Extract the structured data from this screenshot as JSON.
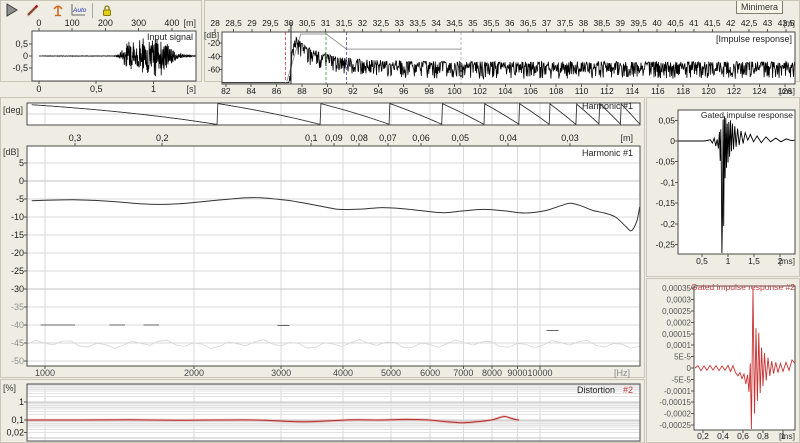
{
  "window": {
    "tooltip": "Minimera"
  },
  "toolbar": {
    "icons": [
      {
        "name": "play-icon"
      },
      {
        "name": "pencil-icon"
      },
      {
        "name": "mic-icon"
      },
      {
        "name": "auto-scale-icon",
        "label": "Auto"
      },
      {
        "name": "lock-icon"
      }
    ]
  },
  "chart_data": [
    {
      "id": "input_signal",
      "type": "waveform",
      "title": "Input signal",
      "color": "#000000",
      "sound_speed": 345,
      "top_axis": {
        "unit": "[m]",
        "values": [
          0,
          100,
          200,
          300,
          400
        ],
        "labels": [
          "0",
          "100",
          "200",
          "300",
          "400"
        ]
      },
      "x_axis": {
        "unit": "[s]",
        "values": [
          0,
          0.5,
          1
        ],
        "labels": [
          "0",
          "0,5",
          "1"
        ],
        "range": [
          -0.06,
          1.37
        ]
      },
      "y_axis": {
        "values": [
          0.5,
          0,
          -0.5
        ],
        "labels": [
          "0,5",
          "0",
          "-0,5"
        ],
        "range": [
          -1.05,
          1.05
        ]
      },
      "envelope": [
        [
          0,
          0
        ],
        [
          0.05,
          0.01
        ],
        [
          0.66,
          0.01
        ],
        [
          0.7,
          0.12
        ],
        [
          0.74,
          0.45
        ],
        [
          0.8,
          0.72
        ],
        [
          0.86,
          0.68
        ],
        [
          0.92,
          0.8
        ],
        [
          0.98,
          0.95
        ],
        [
          1.03,
          0.92
        ],
        [
          1.08,
          0.85
        ],
        [
          1.12,
          0.6
        ],
        [
          1.16,
          0.35
        ],
        [
          1.2,
          0.2
        ],
        [
          1.26,
          0.1
        ],
        [
          1.32,
          0.04
        ],
        [
          1.36,
          0.02
        ]
      ]
    },
    {
      "id": "impulse_response",
      "type": "impulse",
      "title": "[Impulse response]",
      "ylabel": "[dB]",
      "color": "#000000",
      "y_axis": {
        "values": [
          -20,
          -40,
          -60
        ],
        "labels": [
          "-20",
          "-40",
          "-60"
        ],
        "range": [
          -82,
          -3
        ]
      },
      "x_axis": {
        "unit": "[ms]",
        "start": 82,
        "step": 2,
        "count": 23,
        "labels": [
          "82",
          "84",
          "86",
          "88",
          "90",
          "92",
          "94",
          "96",
          "98",
          "100",
          "102",
          "104",
          "106",
          "108",
          "110",
          "112",
          "114",
          "116",
          "118",
          "120",
          "122",
          "124",
          "126"
        ],
        "range": [
          81.7,
          126.8
        ]
      },
      "top_axis": {
        "unit": "[m]",
        "start": 28,
        "step": 0.5,
        "count": 32,
        "labels": [
          "28",
          "28,5",
          "29",
          "29,5",
          "30",
          "30,5",
          "31",
          "31,5",
          "32",
          "32,5",
          "33",
          "33,5",
          "34",
          "34,5",
          "35",
          "35,5",
          "36",
          "36,5",
          "37",
          "37,5",
          "38",
          "38,5",
          "39",
          "39,5",
          "40",
          "40,5",
          "41",
          "41,5",
          "42",
          "42,5",
          "43",
          "43,5"
        ]
      },
      "envelope": [
        [
          81.7,
          -80
        ],
        [
          87.0,
          -80
        ],
        [
          87.1,
          -55
        ],
        [
          87.25,
          -30
        ],
        [
          87.5,
          -14
        ],
        [
          87.8,
          -20
        ],
        [
          88.2,
          -27
        ],
        [
          88.8,
          -33
        ],
        [
          89.5,
          -38
        ],
        [
          90.4,
          -43
        ],
        [
          91.4,
          -46
        ],
        [
          93,
          -49
        ],
        [
          96,
          -51
        ],
        [
          100,
          -52
        ],
        [
          110,
          -52
        ],
        [
          120,
          -52
        ],
        [
          126.8,
          -52
        ]
      ],
      "cursor_t": 87.15,
      "markers": [
        {
          "t": 86.7,
          "color": "#d96060",
          "dash": "3,2"
        },
        {
          "t": 89.9,
          "color": "#5aa85a",
          "dash": "3,2"
        },
        {
          "t": 91.5,
          "color": "#6a6ac8",
          "dash": "3,2"
        },
        {
          "t": 100.5,
          "color": "#b4b4b4",
          "dash": "3,2"
        }
      ],
      "window_line": [
        [
          86.8,
          -78
        ],
        [
          87.9,
          -6
        ],
        [
          89.9,
          -6
        ],
        [
          91.5,
          -29
        ],
        [
          100.5,
          -29
        ]
      ]
    },
    {
      "id": "phase",
      "type": "phase",
      "title": "Harmonic #1",
      "ylabel": "[deg]",
      "color": "#333333",
      "f_range": [
        940,
        15900
      ],
      "first_wrap_f": 2230,
      "delta_f": 1370,
      "y_range": [
        -180,
        180
      ]
    },
    {
      "id": "magnitude",
      "type": "line-log",
      "title": "Harmonic #1",
      "ylabel": "[dB]",
      "color": "#333333",
      "sound_speed": 345,
      "top_axis": {
        "unit": "[m]",
        "values": [
          0.3,
          0.2,
          0.1,
          0.09,
          0.08,
          0.07,
          0.06,
          0.05,
          0.04,
          0.03
        ],
        "labels": [
          "0,3",
          "0,2",
          "0,1",
          "0,09",
          "0,08",
          "0,07",
          "0,06",
          "0,05",
          "0,04",
          "0,03"
        ]
      },
      "x_axis": {
        "unit": "[Hz]",
        "values": [
          1000,
          2000,
          3000,
          4000,
          5000,
          6000,
          7000,
          8000,
          9000,
          10000
        ],
        "labels": [
          "1000",
          "2000",
          "3000",
          "4000",
          "5000",
          "6000",
          "7000",
          "8000",
          "9000",
          "10000"
        ]
      },
      "y_axis": {
        "values": [
          5,
          0,
          -5,
          -10,
          -15,
          -20,
          -25,
          -30,
          -35,
          -40,
          -45,
          -50
        ],
        "labels": [
          "5",
          "0",
          "-5",
          "-10",
          "-15",
          "-20",
          "-25",
          "-30",
          "-35",
          "-40",
          "-45",
          "-50"
        ]
      },
      "points": [
        [
          940,
          -5.5
        ],
        [
          1030,
          -5.3
        ],
        [
          1140,
          -5.2
        ],
        [
          1260,
          -5.4
        ],
        [
          1400,
          -5.8
        ],
        [
          1550,
          -6.3
        ],
        [
          1700,
          -6.5
        ],
        [
          1870,
          -6.3
        ],
        [
          2060,
          -5.8
        ],
        [
          2280,
          -5.2
        ],
        [
          2520,
          -4.7
        ],
        [
          2660,
          -4.6
        ],
        [
          2820,
          -4.8
        ],
        [
          3100,
          -5.4
        ],
        [
          3420,
          -6.4
        ],
        [
          3770,
          -7.5
        ],
        [
          3950,
          -7.9
        ],
        [
          4350,
          -7.8
        ],
        [
          4800,
          -7.4
        ],
        [
          5300,
          -7.7
        ],
        [
          5800,
          -8.3
        ],
        [
          6400,
          -8.8
        ],
        [
          7000,
          -8.3
        ],
        [
          7700,
          -7.9
        ],
        [
          8500,
          -8.3
        ],
        [
          9300,
          -8.9
        ],
        [
          10200,
          -8.3
        ],
        [
          11000,
          -6.9
        ],
        [
          11500,
          -6.2
        ],
        [
          12100,
          -6.9
        ],
        [
          12800,
          -8.2
        ],
        [
          13500,
          -8.9
        ],
        [
          14200,
          -10.0
        ],
        [
          14900,
          -12.6
        ],
        [
          15300,
          -13.8
        ],
        [
          15700,
          -11.0
        ],
        [
          15900,
          -7.2
        ]
      ],
      "floor_segments": [
        [
          980,
          1150,
          -40
        ],
        [
          1350,
          1450,
          -40
        ],
        [
          1580,
          1700,
          -40
        ],
        [
          2950,
          3120,
          -40.2
        ],
        [
          10300,
          10900,
          -41.5
        ]
      ],
      "noise_floor_db": -45.3
    },
    {
      "id": "distortion",
      "type": "line-log",
      "label_main": "Distortion",
      "label_num": "#2",
      "ylabel": "[%]",
      "color": "#b03030",
      "y_axis": {
        "values": [
          1,
          0.1,
          0.02
        ],
        "labels": [
          "1",
          "0,1",
          "0,02"
        ]
      },
      "points": [
        [
          920,
          0.1
        ],
        [
          1177,
          0.1
        ],
        [
          1484,
          0.102
        ],
        [
          1830,
          0.097
        ],
        [
          2204,
          0.1
        ],
        [
          2659,
          0.1
        ],
        [
          3054,
          0.086
        ],
        [
          3350,
          0.079
        ],
        [
          3762,
          0.09
        ],
        [
          4224,
          0.103
        ],
        [
          4743,
          0.1
        ],
        [
          5326,
          0.108
        ],
        [
          5856,
          0.103
        ],
        [
          6439,
          0.082
        ],
        [
          6960,
          0.071
        ],
        [
          7490,
          0.082
        ],
        [
          7975,
          0.1
        ],
        [
          8441,
          0.155
        ],
        [
          8698,
          0.13
        ],
        [
          8922,
          0.106
        ],
        [
          9073,
          0.1
        ]
      ]
    },
    {
      "id": "gated_ir",
      "type": "line",
      "title": "Gated impulse response",
      "color": "#000000",
      "y_axis": {
        "values": [
          0.05,
          0,
          -0.05,
          -0.1,
          -0.15,
          -0.2,
          -0.25
        ],
        "labels": [
          "0,05",
          "0",
          "-0,05",
          "-0,1",
          "-0,15",
          "-0,2",
          "-0,25"
        ]
      },
      "x_axis": {
        "unit": "[ms]",
        "values": [
          0.5,
          1,
          1.5,
          2
        ],
        "labels": [
          "0,5",
          "1",
          "1,5",
          "2"
        ]
      },
      "points": [
        [
          0.04,
          0
        ],
        [
          0.55,
          0
        ],
        [
          0.66,
          0.003
        ],
        [
          0.7,
          -0.005
        ],
        [
          0.735,
          0.007
        ],
        [
          0.765,
          -0.012
        ],
        [
          0.79,
          0.004
        ],
        [
          0.815,
          -0.018
        ],
        [
          0.835,
          0.022
        ],
        [
          0.85,
          -0.048
        ],
        [
          0.862,
          0.028
        ],
        [
          0.872,
          -0.06
        ],
        [
          0.882,
          -0.272
        ],
        [
          0.895,
          -0.18
        ],
        [
          0.905,
          0.052
        ],
        [
          0.917,
          -0.205
        ],
        [
          0.93,
          0.06
        ],
        [
          0.945,
          -0.09
        ],
        [
          0.958,
          0.055
        ],
        [
          0.972,
          -0.065
        ],
        [
          0.985,
          0.042
        ],
        [
          1.0,
          -0.052
        ],
        [
          1.015,
          0.046
        ],
        [
          1.03,
          -0.038
        ],
        [
          1.048,
          0.05
        ],
        [
          1.065,
          -0.025
        ],
        [
          1.085,
          0.042
        ],
        [
          1.105,
          -0.02
        ],
        [
          1.13,
          0.036
        ],
        [
          1.155,
          -0.014
        ],
        [
          1.185,
          0.03
        ],
        [
          1.215,
          -0.01
        ],
        [
          1.25,
          0.024
        ],
        [
          1.29,
          -0.006
        ],
        [
          1.33,
          0.02
        ],
        [
          1.38,
          0.002
        ],
        [
          1.43,
          0.016
        ],
        [
          1.49,
          -0.002
        ],
        [
          1.56,
          0.012
        ],
        [
          1.64,
          -0.004
        ],
        [
          1.73,
          0.01
        ],
        [
          1.82,
          -0.002
        ],
        [
          1.92,
          0.007
        ],
        [
          2.02,
          -0.002
        ],
        [
          2.12,
          0.005
        ],
        [
          2.22,
          0.001
        ],
        [
          2.29,
          0.002
        ]
      ]
    },
    {
      "id": "gated_ir2",
      "type": "line",
      "title": "Gated impulse response #2",
      "color": "#c83232",
      "y_axis": {
        "values": [
          0.00035,
          0.0003,
          0.00025,
          0.0002,
          0.00015,
          0.0001,
          5e-05,
          0,
          -5e-05,
          -0.0001,
          -0.00015,
          -0.0002,
          -0.00025
        ],
        "labels": [
          "0,00035",
          "0,0003",
          "0,00025",
          "0,0002",
          "0,00015",
          "0,0001",
          "5E-5",
          "0",
          "-5E-5",
          "-0,0001",
          "-0,00015",
          "-0,0002",
          "-0,00025"
        ]
      },
      "x_axis": {
        "unit": "[ms]",
        "values": [
          0.2,
          0.4,
          0.6,
          0.8,
          1
        ],
        "labels": [
          "0,2",
          "0,4",
          "0,6",
          "0,8",
          "1"
        ]
      },
      "points": [
        [
          0.12,
          0
        ],
        [
          0.15,
          1e-05
        ],
        [
          0.18,
          -1.2e-05
        ],
        [
          0.21,
          9e-06
        ],
        [
          0.24,
          -1e-05
        ],
        [
          0.27,
          1.2e-05
        ],
        [
          0.3,
          -9e-06
        ],
        [
          0.33,
          1e-05
        ],
        [
          0.36,
          -1.2e-05
        ],
        [
          0.39,
          9e-06
        ],
        [
          0.42,
          -1e-05
        ],
        [
          0.45,
          1.2e-05
        ],
        [
          0.475,
          -1.6e-05
        ],
        [
          0.5,
          1e-05
        ],
        [
          0.525,
          -2e-05
        ],
        [
          0.55,
          -3.4e-05
        ],
        [
          0.57,
          -2e-05
        ],
        [
          0.59,
          -4.6e-05
        ],
        [
          0.61,
          -2.6e-05
        ],
        [
          0.628,
          -7e-05
        ],
        [
          0.645,
          -3e-05
        ],
        [
          0.66,
          -0.000105
        ],
        [
          0.673,
          2e-05
        ],
        [
          0.684,
          -0.00027
        ],
        [
          0.7,
          0.00035
        ],
        [
          0.715,
          -0.0002
        ],
        [
          0.73,
          0.000175
        ],
        [
          0.744,
          -0.000145
        ],
        [
          0.758,
          0.000155
        ],
        [
          0.772,
          -0.00011
        ],
        [
          0.786,
          9e-05
        ],
        [
          0.8,
          -8e-05
        ],
        [
          0.815,
          6.5e-05
        ],
        [
          0.832,
          -5.5e-05
        ],
        [
          0.85,
          4.5e-05
        ],
        [
          0.868,
          -3.5e-05
        ],
        [
          0.887,
          3e-05
        ],
        [
          0.906,
          -2.5e-05
        ],
        [
          0.928,
          2.5e-05
        ],
        [
          0.95,
          -2e-05
        ],
        [
          0.974,
          2e-05
        ],
        [
          1.0,
          -1.5e-05
        ],
        [
          1.03,
          2.5e-05
        ],
        [
          1.06,
          -1e-05
        ],
        [
          1.09,
          3.5e-05
        ],
        [
          1.12,
          2e-05
        ]
      ]
    }
  ]
}
